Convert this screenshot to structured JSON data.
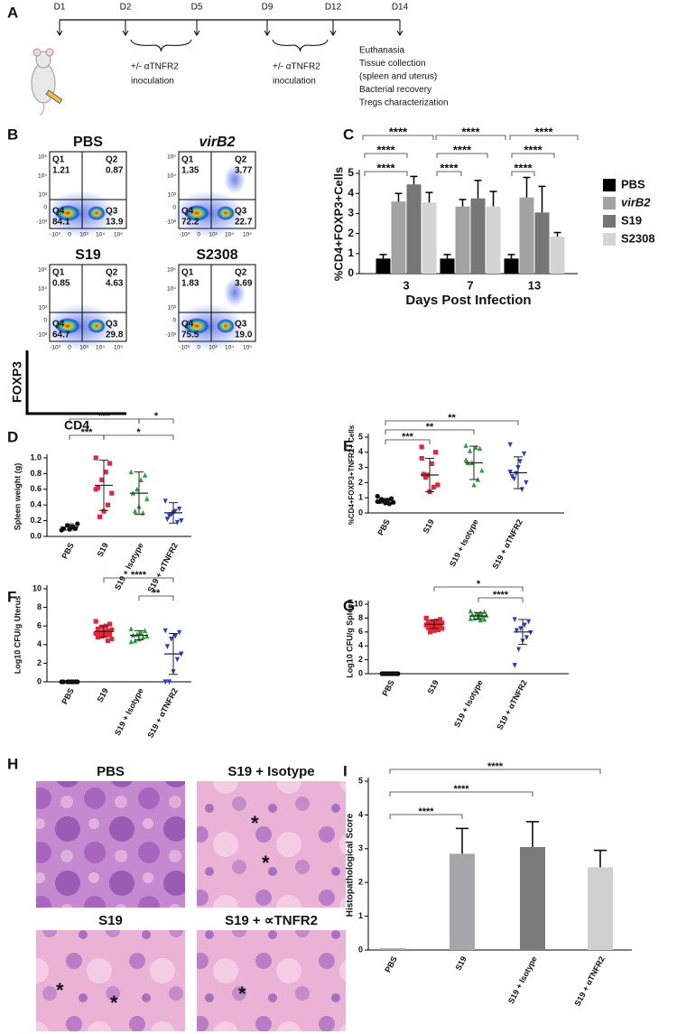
{
  "panel_labels": [
    "A",
    "B",
    "C",
    "D",
    "E",
    "F",
    "G",
    "H",
    "I"
  ],
  "timeline": {
    "days": [
      "D1",
      "D2",
      "D5",
      "D9",
      "D12",
      "D14"
    ],
    "inoculation": [
      [
        "+/- αTNFR2",
        "inoculation"
      ],
      [
        "+/- αTNFR2",
        "inoculation"
      ]
    ],
    "endpoints": [
      "Euthanasia",
      "Tissue collection",
      "(spleen and uterus)",
      "Bacterial recovery",
      "Tregs characterization"
    ]
  },
  "flow": {
    "y_axis_label": "FOXP3",
    "x_axis_label": "CD4",
    "y_tick_labels": [
      "10⁵",
      "10⁴",
      "10³",
      "0",
      "-10³"
    ],
    "x_tick_labels": [
      "-10³",
      "0",
      "10³",
      "10⁴",
      "10⁵"
    ],
    "plots": [
      {
        "title": "PBS",
        "quadrants": [
          [
            "Q1",
            "1.21"
          ],
          [
            "Q2",
            "0.87"
          ],
          [
            "Q4",
            "84.1"
          ],
          [
            "Q3",
            "13.9"
          ]
        ]
      },
      {
        "title": "virB2",
        "title_italic": true,
        "quadrants": [
          [
            "Q1",
            "1.35"
          ],
          [
            "Q2",
            "3.77"
          ],
          [
            "Q4",
            "72.2"
          ],
          [
            "Q3",
            "22.7"
          ]
        ]
      },
      {
        "title": "S19",
        "quadrants": [
          [
            "Q1",
            "0.85"
          ],
          [
            "Q2",
            "4.63"
          ],
          [
            "Q4",
            "64.7"
          ],
          [
            "Q3",
            "29.8"
          ]
        ]
      },
      {
        "title": "S2308",
        "quadrants": [
          [
            "Q1",
            "1.83"
          ],
          [
            "Q2",
            "3.69"
          ],
          [
            "Q4",
            "75.5"
          ],
          [
            "Q3",
            "19.0"
          ]
        ]
      }
    ]
  },
  "histology": {
    "panels": [
      {
        "title": "PBS",
        "marks": []
      },
      {
        "title": "S19 + Isotype",
        "marks": [
          "*",
          "*"
        ]
      },
      {
        "title": "S19",
        "marks": [
          "*",
          "*"
        ]
      },
      {
        "title": "S19 + ∝TNFR2",
        "marks": [
          "*"
        ]
      }
    ]
  },
  "chart_data": [
    {
      "type": "bar",
      "categories": [
        "3",
        "7",
        "13"
      ],
      "series": [
        {
          "name": "PBS",
          "color": "#000000",
          "values": [
            0.75,
            0.75,
            0.75
          ],
          "errors": [
            0.2,
            0.2,
            0.2
          ]
        },
        {
          "name": "virB2",
          "italic": true,
          "color": "#a3a3a3",
          "values": [
            3.6,
            3.35,
            3.8
          ],
          "errors": [
            0.4,
            0.35,
            1.0
          ]
        },
        {
          "name": "S19",
          "color": "#767676",
          "values": [
            4.45,
            3.75,
            3.05
          ],
          "errors": [
            0.4,
            0.9,
            1.3
          ]
        },
        {
          "name": "S2308",
          "color": "#d4d4d4",
          "values": [
            3.55,
            3.35,
            1.85
          ],
          "errors": [
            0.5,
            0.75,
            0.2
          ]
        }
      ],
      "y_label": "%CD4+FOXP3+Cells",
      "x_label": "Days Post Infection",
      "ylim": [
        0,
        5
      ],
      "yticks": [
        0,
        1,
        2,
        3,
        4,
        5
      ],
      "significance": [
        "****",
        "****",
        "****",
        "****",
        "****",
        "****",
        "****",
        "****",
        "****"
      ],
      "legend": "right"
    },
    {
      "type": "dot",
      "categories": [
        "PBS",
        "S19",
        "S19 + Isotype",
        "S19 + αTNFR2"
      ],
      "colors": [
        "#000000",
        "#e3263a",
        "#2e9e3a",
        "#2a3fc4"
      ],
      "markers": [
        "circle",
        "square",
        "triangle",
        "triangle-down"
      ],
      "points": [
        [
          0.08,
          0.1,
          0.12,
          0.14,
          0.1,
          0.16,
          0.12,
          0.09
        ],
        [
          1.0,
          0.93,
          0.82,
          0.72,
          0.62,
          0.55,
          0.4,
          0.32,
          0.25,
          0.6
        ],
        [
          0.82,
          0.78,
          0.72,
          0.6,
          0.55,
          0.48,
          0.3,
          0.38,
          0.32
        ],
        [
          0.45,
          0.35,
          0.32,
          0.28,
          0.22,
          0.2,
          0.18,
          0.3,
          0.26
        ]
      ],
      "means": [
        0.12,
        0.65,
        0.55,
        0.3
      ],
      "sds": [
        0.04,
        0.32,
        0.27,
        0.13
      ],
      "y_label": "Spleen weight (g)",
      "ylim": [
        0,
        1.0
      ],
      "yticks": [
        {
          "value": 0,
          "label": "0.0"
        },
        {
          "value": 0.2,
          "label": "0.2"
        },
        {
          "value": 0.4,
          "label": "0.4"
        },
        {
          "value": 0.6,
          "label": "0.6"
        },
        {
          "value": 0.8,
          "label": "0.8"
        },
        {
          "value": 1.0,
          "label": "1.0"
        }
      ],
      "significance": [
        "***",
        "*",
        "***",
        "*"
      ]
    },
    {
      "type": "dot",
      "categories": [
        "PBS",
        "S19",
        "S19 + Isotype",
        "S19 + αTNFR2"
      ],
      "colors": [
        "#000000",
        "#e3263a",
        "#2e9e3a",
        "#2a3fc4"
      ],
      "markers": [
        "circle",
        "square",
        "triangle",
        "triangle-down"
      ],
      "points": [
        [
          1.1,
          0.95,
          0.85,
          0.8,
          0.75,
          0.7,
          0.6,
          0.65,
          0.9,
          0.75
        ],
        [
          4.35,
          4.0,
          3.25,
          2.5,
          2.55,
          1.85,
          1.7,
          1.4,
          2.35,
          3.6
        ],
        [
          4.45,
          4.25,
          4.3,
          3.3,
          3.3,
          2.8,
          2.2,
          1.85,
          4.1,
          3.5
        ],
        [
          4.5,
          3.9,
          3.4,
          2.6,
          2.4,
          2.0,
          1.55,
          3.0,
          2.25,
          2.7
        ]
      ],
      "means": [
        0.8,
        2.5,
        3.3,
        2.65
      ],
      "sds": [
        0.15,
        1.1,
        1.1,
        1.05
      ],
      "y_label": "%CD4+FOXP3+TNFR2+ Cells",
      "ylim": [
        0,
        5
      ],
      "yticks": [
        0,
        1,
        2,
        3,
        4,
        5
      ],
      "significance": [
        "**",
        "**",
        "***"
      ]
    },
    {
      "type": "dot",
      "categories": [
        "PBS",
        "S19",
        "S19 + Isotype",
        "S19 + αTNFR2"
      ],
      "colors": [
        "#000000",
        "#e3263a",
        "#2e9e3a",
        "#2a3fc4"
      ],
      "markers": [
        "circle",
        "square",
        "triangle",
        "triangle-down"
      ],
      "points": [
        [
          0,
          0,
          0,
          0,
          0,
          0,
          0,
          0
        ],
        [
          6.5,
          6.2,
          6.0,
          5.9,
          5.7,
          5.6,
          5.5,
          5.4,
          5.3,
          5.2,
          5.1,
          5.0,
          4.9,
          4.8,
          4.6,
          4.4
        ],
        [
          5.7,
          5.5,
          5.3,
          5.1,
          5.0,
          4.9,
          4.8,
          4.6,
          4.4,
          4.3
        ],
        [
          5.5,
          5.3,
          4.9,
          4.6,
          3.8,
          3.0,
          2.4,
          1.1,
          0,
          0
        ]
      ],
      "means": [
        0,
        5.4,
        5.0,
        3.0
      ],
      "sds": [
        0,
        0.6,
        0.5,
        2.2
      ],
      "y_label": "Log10 CFU/g Uterus",
      "ylim": [
        0,
        10
      ],
      "yticks": [
        0,
        2,
        4,
        6,
        8,
        10
      ],
      "significance": [
        "****",
        "**"
      ]
    },
    {
      "type": "dot",
      "categories": [
        "PBS",
        "S19",
        "S19 + Isotype",
        "S19 + αTNFR2"
      ],
      "colors": [
        "#000000",
        "#e3263a",
        "#2e9e3a",
        "#2a3fc4"
      ],
      "markers": [
        "circle",
        "square",
        "triangle",
        "triangle-down"
      ],
      "points": [
        [
          0,
          0,
          0,
          0,
          0,
          0,
          0,
          0,
          0
        ],
        [
          8.0,
          7.8,
          7.6,
          7.5,
          7.4,
          7.3,
          7.2,
          7.1,
          7.1,
          7.0,
          6.9,
          6.8,
          6.7,
          6.6,
          6.5,
          6.3,
          6.2,
          6.0
        ],
        [
          9.0,
          8.9,
          8.7,
          8.6,
          8.5,
          8.4,
          8.3,
          8.2,
          8.0,
          7.9,
          7.8,
          7.7
        ],
        [
          7.8,
          7.5,
          7.0,
          6.5,
          6.2,
          5.9,
          5.2,
          4.7,
          3.5,
          1.2
        ]
      ],
      "means": [
        0,
        7.1,
        8.3,
        6.0
      ],
      "sds": [
        0,
        0.6,
        0.5,
        1.8
      ],
      "y_label": "Log10 CFU/g Spleen",
      "ylim": [
        0,
        10
      ],
      "yticks": [
        0,
        2,
        4,
        6,
        8,
        10
      ],
      "significance": [
        "*",
        "****"
      ]
    },
    {
      "type": "bar",
      "categories": [
        "PBS",
        "S19",
        "S19 + Isotype",
        "S19 + αTNFR2"
      ],
      "values": [
        0.05,
        2.85,
        3.05,
        2.45
      ],
      "errors": [
        null,
        0.75,
        0.75,
        0.5
      ],
      "colors": [
        "#a8a8a8",
        "#a6a6ab",
        "#7a7a7a",
        "#d0d0d0"
      ],
      "y_label": "Histopathological Score",
      "ylim": [
        0,
        5
      ],
      "yticks": [
        0,
        1,
        2,
        3,
        4,
        5
      ],
      "significance": [
        "****",
        "****",
        "****"
      ]
    }
  ]
}
